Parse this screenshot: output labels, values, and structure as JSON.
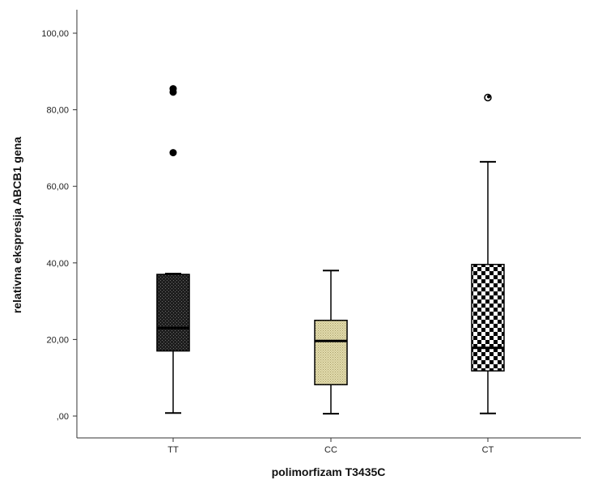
{
  "chart_data": {
    "type": "boxplot",
    "title": "",
    "xlabel": "polimorfizam T3435C",
    "ylabel": "relativna ekspresija ABCB1 gena",
    "ylim": [
      0,
      100
    ],
    "y_ticks": [
      0,
      20,
      40,
      60,
      80,
      100
    ],
    "y_tick_labels": [
      ",00",
      "20,00",
      "40,00",
      "60,00",
      "80,00",
      "100,00"
    ],
    "grid": false,
    "legend": "none",
    "categories": [
      "TT",
      "CC",
      "CT"
    ],
    "boxes": [
      {
        "category": "TT",
        "whisker_low": 0.8,
        "q1": 17.0,
        "median": 23.0,
        "q3": 37.0,
        "whisker_high": 37.2,
        "outliers": [
          68.8,
          84.6,
          85.5
        ],
        "pattern": "dense-dark",
        "color": "#2a2a2a"
      },
      {
        "category": "CC",
        "whisker_low": 0.6,
        "q1": 8.2,
        "median": 19.6,
        "q3": 25.0,
        "whisker_high": 38.0,
        "outliers": [],
        "pattern": "fine-beige",
        "color": "#d6cf9c"
      },
      {
        "category": "CT",
        "whisker_low": 0.7,
        "q1": 11.8,
        "median": 17.8,
        "q3": 39.6,
        "whisker_high": 66.4,
        "outliers": [
          83.2
        ],
        "pattern": "checkerboard",
        "color": "#000000"
      }
    ]
  }
}
